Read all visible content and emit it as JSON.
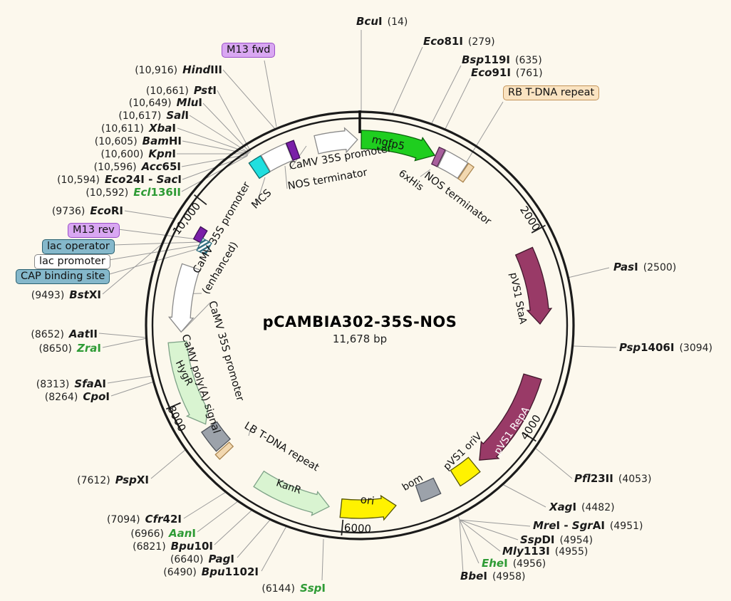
{
  "title": {
    "name": "pCAMBIA302-35S-NOS",
    "size": "11,678 bp"
  },
  "plasmid_length_bp": 11678,
  "colors": {
    "background": "#FCF8ED",
    "enzyme_green": "#2E9B35",
    "cds_green": "#1FCE1F",
    "pale_green": "#D9F4D1",
    "maroon": "#993A67",
    "yellow": "#FFF200",
    "cyan": "#20DFDF",
    "purple_slab": "#7A1FA8",
    "mauve": "#A8609D",
    "tan": "#F2D8B0",
    "gray_box": "#9CA2AA",
    "primer_label": "#D9A7F2",
    "operator_label": "#85B8CB",
    "tdna_label": "#FAE3C1"
  },
  "ticks": [
    {
      "label": "2000",
      "pos": 2000
    },
    {
      "label": "4000",
      "pos": 4000
    },
    {
      "label": "6000",
      "pos": 6000
    },
    {
      "label": "8000",
      "pos": 8000
    },
    {
      "label": "10,000",
      "pos": 10000
    }
  ],
  "features": [
    {
      "id": "camv35s_top",
      "label": "CaMV 35S promoter",
      "type": "promoter-arrow",
      "fill": "white",
      "start": 11240,
      "end": 11655,
      "dir": 1
    },
    {
      "id": "mgfp5",
      "label": "mgfp5",
      "type": "cds-arrow",
      "fill": "green",
      "start": 15,
      "end": 770,
      "dir": 1
    },
    {
      "id": "sixhis",
      "label": "6xHis",
      "type": "tag-slab",
      "fill": "mauve",
      "start": 778,
      "end": 842,
      "dir": 0
    },
    {
      "id": "nos_right",
      "label": "NOS terminator",
      "type": "box",
      "fill": "white",
      "start": 850,
      "end": 1090,
      "dir": 0
    },
    {
      "id": "rb_slab",
      "label": "RB T-DNA repeat",
      "type": "slab",
      "fill": "tan",
      "start": 1098,
      "end": 1160,
      "dir": 0
    },
    {
      "id": "staa",
      "label": "pVS1 StaA",
      "type": "cds-arrow",
      "fill": "maroon",
      "start": 2130,
      "end": 2905,
      "dir": 1
    },
    {
      "id": "repa",
      "label": "pVS1 RepA",
      "type": "cds-arrow",
      "fill": "maroon",
      "start": 3455,
      "end": 4490,
      "dir": 1
    },
    {
      "id": "oriv",
      "label": "pVS1 oriV",
      "type": "square",
      "fill": "yellow",
      "start": 4560,
      "end": 4800,
      "dir": 0
    },
    {
      "id": "bom",
      "label": "bom",
      "type": "square",
      "fill": "gray",
      "start": 5005,
      "end": 5215,
      "dir": 0
    },
    {
      "id": "ori",
      "label": "ori",
      "type": "cds-arrow",
      "fill": "yellow",
      "start": 5470,
      "end": 6030,
      "dir": -1
    },
    {
      "id": "kanr",
      "label": "KanR",
      "type": "cds-arrow",
      "fill": "palegreen",
      "start": 6150,
      "end": 6920,
      "dir": -1
    },
    {
      "id": "lb_slab",
      "label": "LB T-DNA repeat",
      "type": "slab",
      "fill": "tan",
      "start": 7340,
      "end": 7402,
      "dir": 0
    },
    {
      "id": "polya",
      "label": "CaMV poly(A) signal",
      "type": "square",
      "fill": "gray",
      "start": 7420,
      "end": 7655,
      "dir": 0
    },
    {
      "id": "hygr",
      "label": "HygR",
      "type": "cds-arrow",
      "fill": "palegreen",
      "start": 7700,
      "end": 8590,
      "dir": -1
    },
    {
      "id": "enh",
      "label": "CaMV 35S promoter (enhanced)",
      "type": "promoter-arrow",
      "fill": "white",
      "start": 8690,
      "end": 9380,
      "dir": -1
    },
    {
      "id": "m13rev_mark",
      "label": "M13 rev",
      "type": "slab",
      "fill": "purple",
      "start": 9650,
      "end": 9790,
      "dir": 0
    },
    {
      "id": "lac_mark",
      "label": "CAP binding site / lac",
      "type": "slab-hatched",
      "fill": "hatch",
      "start": 9560,
      "end": 9700,
      "dir": 0
    },
    {
      "id": "mcs",
      "label": "MCS",
      "type": "box",
      "fill": "cyan",
      "start": 10565,
      "end": 10695,
      "dir": 0
    },
    {
      "id": "camv35s_mcs",
      "label": "CaMV 35S promoter",
      "type": "box",
      "fill": "white",
      "start": 10700,
      "end": 10960,
      "dir": 0
    },
    {
      "id": "nos_left_slab",
      "label": "NOS terminator",
      "type": "slab",
      "fill": "purple",
      "start": 10965,
      "end": 11040,
      "dir": 0
    }
  ],
  "feature_labels": [
    {
      "id": "camv35s_top_lbl",
      "text": "CaMV 35S promoter"
    },
    {
      "id": "nos_left_lbl",
      "text": "NOS terminator"
    },
    {
      "id": "mcs_lbl",
      "text": "MCS"
    },
    {
      "id": "enh1_lbl",
      "text": "CaMV 35S promoter"
    },
    {
      "id": "enh2_lbl",
      "text": "(enhanced)"
    },
    {
      "id": "camv35s_left_lbl",
      "text": "CaMV 35S promoter"
    },
    {
      "id": "polya_lbl",
      "text": "CaMV poly(A) signal"
    },
    {
      "id": "hygr_lbl",
      "text": "HygR"
    },
    {
      "id": "lb_lbl",
      "text": "LB T-DNA repeat"
    },
    {
      "id": "kanr_lbl",
      "text": "KanR"
    },
    {
      "id": "ori_lbl",
      "text": "ori"
    },
    {
      "id": "bom_lbl",
      "text": "bom"
    },
    {
      "id": "oriv_lbl",
      "text": "pVS1 oriV"
    },
    {
      "id": "repa_lbl",
      "text": "pVS1 RepA"
    },
    {
      "id": "staa_lbl",
      "text": "pVS1 StaA"
    },
    {
      "id": "sixhis_lbl",
      "text": "6xHis"
    },
    {
      "id": "nos_right_lbl",
      "text": "NOS terminator"
    },
    {
      "id": "mgfp5_lbl",
      "text": "mgfp5"
    }
  ],
  "site_labels": [
    {
      "id": "m13fwd",
      "text": "M13 fwd",
      "style": "primer"
    },
    {
      "id": "rb",
      "text": "RB T-DNA repeat",
      "style": "tdna"
    },
    {
      "id": "m13rev",
      "text": "M13 rev",
      "style": "primer"
    },
    {
      "id": "lacop",
      "text": "lac operator",
      "style": "operator"
    },
    {
      "id": "lacprom",
      "text": "lac promoter",
      "style": "plain"
    },
    {
      "id": "cap",
      "text": "CAP binding site",
      "style": "operator"
    }
  ],
  "enzymes": [
    {
      "id": "BcuI",
      "parts": [
        [
          "Bcu",
          1
        ],
        [
          "I",
          0
        ]
      ],
      "pos": "(14)",
      "green": false
    },
    {
      "id": "Eco81I",
      "parts": [
        [
          "Eco",
          1
        ],
        [
          "81I",
          0
        ]
      ],
      "pos": "(279)",
      "green": false
    },
    {
      "id": "Bsp119I",
      "parts": [
        [
          "Bsp",
          1
        ],
        [
          "119I",
          0
        ]
      ],
      "pos": "(635)",
      "green": false
    },
    {
      "id": "Eco91I",
      "parts": [
        [
          "Eco",
          1
        ],
        [
          "91I",
          0
        ]
      ],
      "pos": "(761)",
      "green": false
    },
    {
      "id": "PasI",
      "parts": [
        [
          "Pas",
          1
        ],
        [
          "I",
          0
        ]
      ],
      "pos": "(2500)",
      "green": false
    },
    {
      "id": "Psp1406I",
      "parts": [
        [
          "Psp",
          1
        ],
        [
          "1406I",
          0
        ]
      ],
      "pos": "(3094)",
      "green": false
    },
    {
      "id": "Pfl23II",
      "parts": [
        [
          "Pfl",
          1
        ],
        [
          "23II",
          0
        ]
      ],
      "pos": "(4053)",
      "green": false
    },
    {
      "id": "XagI",
      "parts": [
        [
          "Xag",
          1
        ],
        [
          "I",
          0
        ]
      ],
      "pos": "(4482)",
      "green": false
    },
    {
      "id": "MreI-SgrAI",
      "parts": [
        [
          "Mre",
          1
        ],
        [
          "I",
          0
        ],
        [
          " - ",
          0
        ],
        [
          "Sgr",
          1
        ],
        [
          "AI",
          0
        ]
      ],
      "pos": "(4951)",
      "green": false
    },
    {
      "id": "SspDI",
      "parts": [
        [
          "Ssp",
          1
        ],
        [
          "DI",
          0
        ]
      ],
      "pos": "(4954)",
      "green": false
    },
    {
      "id": "Mly113I",
      "parts": [
        [
          "Mly",
          1
        ],
        [
          "113I",
          0
        ]
      ],
      "pos": "(4955)",
      "green": false
    },
    {
      "id": "EheI",
      "parts": [
        [
          "Ehe",
          1
        ],
        [
          "I",
          0
        ]
      ],
      "pos": "(4956)",
      "green": true
    },
    {
      "id": "BbeI",
      "parts": [
        [
          "Bbe",
          1
        ],
        [
          "I",
          0
        ]
      ],
      "pos": "(4958)",
      "green": false
    },
    {
      "id": "SspI",
      "parts": [
        [
          "Ssp",
          1
        ],
        [
          "I",
          0
        ]
      ],
      "pos": "(6144)",
      "green": true
    },
    {
      "id": "Bpu1102I",
      "parts": [
        [
          "Bpu",
          1
        ],
        [
          "1102I",
          0
        ]
      ],
      "pos": "(6490)",
      "green": false
    },
    {
      "id": "PagI",
      "parts": [
        [
          "Pag",
          1
        ],
        [
          "I",
          0
        ]
      ],
      "pos": "(6640)",
      "green": false
    },
    {
      "id": "Bpu10I",
      "parts": [
        [
          "Bpu",
          1
        ],
        [
          "10I",
          0
        ]
      ],
      "pos": "(6821)",
      "green": false
    },
    {
      "id": "AanI",
      "parts": [
        [
          "Aan",
          1
        ],
        [
          "I",
          0
        ]
      ],
      "pos": "(6966)",
      "green": true
    },
    {
      "id": "Cfr42I",
      "parts": [
        [
          "Cfr",
          1
        ],
        [
          "42I",
          0
        ]
      ],
      "pos": "(7094)",
      "green": false
    },
    {
      "id": "PspXI",
      "parts": [
        [
          "Psp",
          1
        ],
        [
          "XI",
          0
        ]
      ],
      "pos": "(7612)",
      "green": false
    },
    {
      "id": "CpoI",
      "parts": [
        [
          "Cpo",
          1
        ],
        [
          "I",
          0
        ]
      ],
      "pos": "(8264)",
      "green": false
    },
    {
      "id": "SfaAI",
      "parts": [
        [
          "Sfa",
          1
        ],
        [
          "AI",
          0
        ]
      ],
      "pos": "(8313)",
      "green": false
    },
    {
      "id": "ZraI",
      "parts": [
        [
          "Zra",
          1
        ],
        [
          "I",
          0
        ]
      ],
      "pos": "(8650)",
      "green": true
    },
    {
      "id": "AatII",
      "parts": [
        [
          "Aat",
          1
        ],
        [
          "II",
          0
        ]
      ],
      "pos": "(8652)",
      "green": false
    },
    {
      "id": "BstXI",
      "parts": [
        [
          "Bst",
          1
        ],
        [
          "XI",
          0
        ]
      ],
      "pos": "(9493)",
      "green": false
    },
    {
      "id": "EcoRI",
      "parts": [
        [
          "Eco",
          1
        ],
        [
          "RI",
          0
        ]
      ],
      "pos": "(9736)",
      "green": false
    },
    {
      "id": "Ecl136II",
      "parts": [
        [
          "Ecl",
          1
        ],
        [
          "136II",
          0
        ]
      ],
      "pos": "(10,592)",
      "green": true
    },
    {
      "id": "Eco24I-SacI",
      "parts": [
        [
          "Eco",
          1
        ],
        [
          "24I",
          0
        ],
        [
          " - ",
          0
        ],
        [
          "Sac",
          1
        ],
        [
          "I",
          0
        ]
      ],
      "pos": "(10,594)",
      "green": false
    },
    {
      "id": "Acc65I",
      "parts": [
        [
          "Acc",
          1
        ],
        [
          "65I",
          0
        ]
      ],
      "pos": "(10,596)",
      "green": false
    },
    {
      "id": "KpnI",
      "parts": [
        [
          "Kpn",
          1
        ],
        [
          "I",
          0
        ]
      ],
      "pos": "(10,600)",
      "green": false
    },
    {
      "id": "BamHI",
      "parts": [
        [
          "Bam",
          1
        ],
        [
          "HI",
          0
        ]
      ],
      "pos": "(10,605)",
      "green": false
    },
    {
      "id": "XbaI",
      "parts": [
        [
          "Xba",
          1
        ],
        [
          "I",
          0
        ]
      ],
      "pos": "(10,611)",
      "green": false
    },
    {
      "id": "SalI",
      "parts": [
        [
          "Sal",
          1
        ],
        [
          "I",
          0
        ]
      ],
      "pos": "(10,617)",
      "green": false
    },
    {
      "id": "MluI",
      "parts": [
        [
          "Mlu",
          1
        ],
        [
          "I",
          0
        ]
      ],
      "pos": "(10,649)",
      "green": false
    },
    {
      "id": "PstI",
      "parts": [
        [
          "Pst",
          1
        ],
        [
          "I",
          0
        ]
      ],
      "pos": "(10,661)",
      "green": false
    },
    {
      "id": "HindIII",
      "parts": [
        [
          "Hind",
          1
        ],
        [
          "III",
          0
        ]
      ],
      "pos": "(10,916)",
      "green": false
    }
  ]
}
